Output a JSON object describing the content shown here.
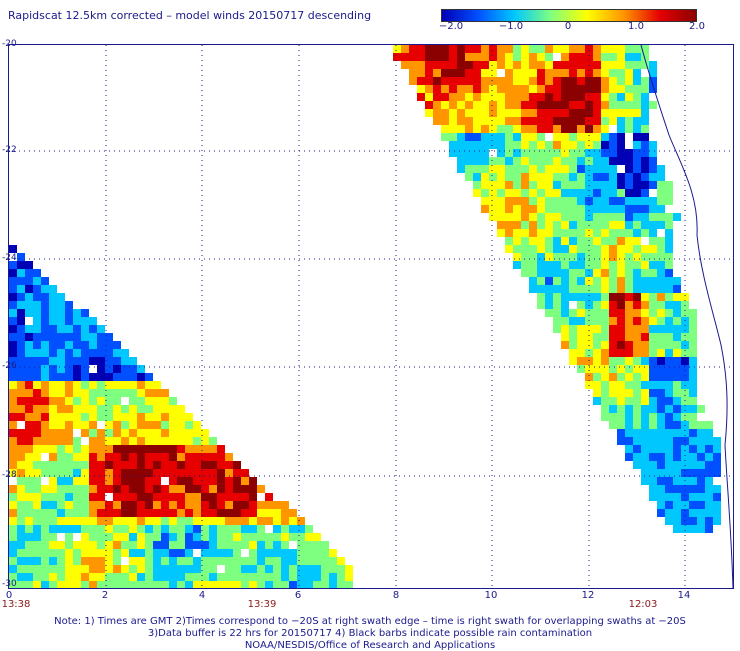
{
  "title": "Rapidscat 12.5km corrected – model winds 20150717 descending",
  "colorbar": {
    "ticks": [
      "−2.0",
      "−1.0",
      "0",
      "1.0",
      "2.0"
    ],
    "colors": [
      "#0000b4",
      "#0050ff",
      "#00c8ff",
      "#7fff7f",
      "#ffff00",
      "#ff9600",
      "#e60000",
      "#8b0000"
    ]
  },
  "y_ticks": [
    "-20",
    "-22",
    "-24",
    "-26",
    "-28",
    "-30"
  ],
  "x_ticks": [
    "0",
    "2",
    "4",
    "6",
    "8",
    "10",
    "12",
    "14"
  ],
  "times": [
    "13:38",
    "13:39",
    "12:03"
  ],
  "notes": [
    "Note: 1) Times are GMT 2)Times correspond to −20S at right swath edge – time is right swath for overlapping swaths at −20S",
    "3)Data buffer is 22 hrs for 20150717 4) Black barbs indicate possible rain contamination",
    "NOAA/NESDIS/Office of Research and Applications"
  ]
}
